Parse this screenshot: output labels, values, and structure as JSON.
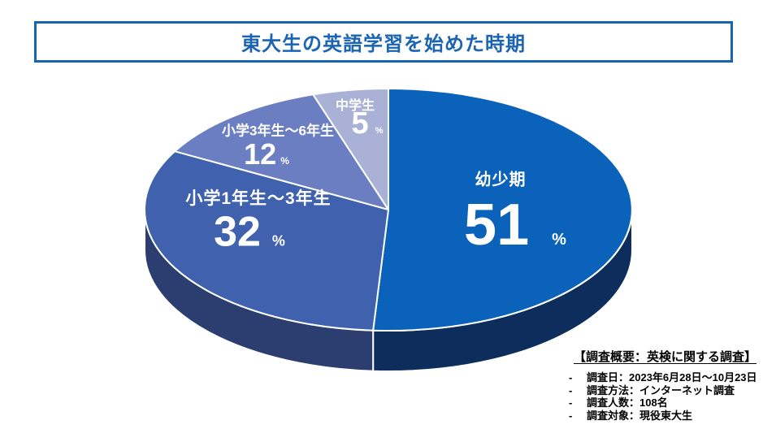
{
  "header": {
    "title": "東大生の英語学習を始めた時期",
    "accent_color": "#1B64B4"
  },
  "chart_data": {
    "type": "pie",
    "style": "3d",
    "title": "東大生の英語学習を始めた時期",
    "unit": "%",
    "direction": "clockwise",
    "start_angle_deg": 0,
    "total": 100,
    "slices": [
      {
        "label": "幼少期",
        "value": 51,
        "color": "#0A62BA",
        "side_color": "#0D2E5C"
      },
      {
        "label": "小学1年生〜3年生",
        "value": 32,
        "color": "#4061AD",
        "side_color": "#2C3E70"
      },
      {
        "label": "小学3年生〜6年生",
        "value": 12,
        "color": "#6A7EC1",
        "side_color": "#46538C"
      },
      {
        "label": "中学生",
        "value": 5,
        "color": "#A9B2D6",
        "side_color": "#7A86B4"
      }
    ]
  },
  "survey": {
    "title": "【調査概要：英検に関する調査】",
    "bullet": "-",
    "items": [
      "調査日：2023年6月28日〜10月23日",
      "調査方法：インターネット調査",
      "調査人数：108名",
      "調査対象：現役東大生"
    ]
  }
}
